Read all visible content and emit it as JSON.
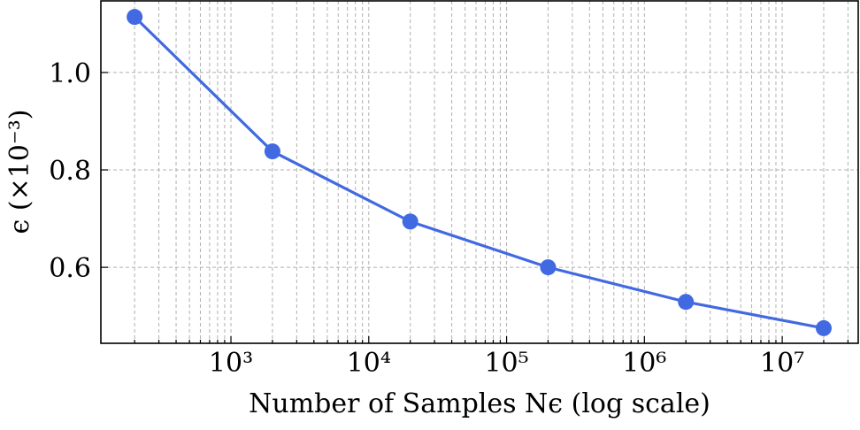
{
  "chart_data": {
    "type": "line",
    "xlabel": "Number of Samples Nϵ (log scale)",
    "ylabel": "ϵ (×10⁻³)",
    "x": [
      200,
      2000,
      20000,
      200000,
      2000000,
      20000000
    ],
    "series": [
      {
        "name": "ϵ",
        "color": "#4169e1",
        "values": [
          1.114,
          0.838,
          0.694,
          0.6,
          0.529,
          0.475
        ]
      }
    ],
    "xscale": "log",
    "xlim": [
      113.8,
      35600000
    ],
    "xticks": [
      {
        "value": 1000,
        "label": "10³"
      },
      {
        "value": 10000,
        "label": "10⁴"
      },
      {
        "value": 100000,
        "label": "10⁵"
      },
      {
        "value": 1000000,
        "label": "10⁶"
      },
      {
        "value": 10000000,
        "label": "10⁷"
      }
    ],
    "xminorticks": [
      200,
      300,
      400,
      500,
      600,
      700,
      800,
      900,
      2000,
      3000,
      4000,
      5000,
      6000,
      7000,
      8000,
      9000,
      20000,
      30000,
      40000,
      50000,
      60000,
      70000,
      80000,
      90000,
      200000,
      300000,
      400000,
      500000,
      600000,
      700000,
      800000,
      900000,
      2000000,
      3000000,
      4000000,
      5000000,
      6000000,
      7000000,
      8000000,
      9000000,
      20000000,
      30000000
    ],
    "ylim": [
      0.444,
      1.147
    ],
    "yticks": [
      0.6,
      0.8,
      {
        "value": 1,
        "label": "1.0"
      }
    ],
    "grid": true
  }
}
